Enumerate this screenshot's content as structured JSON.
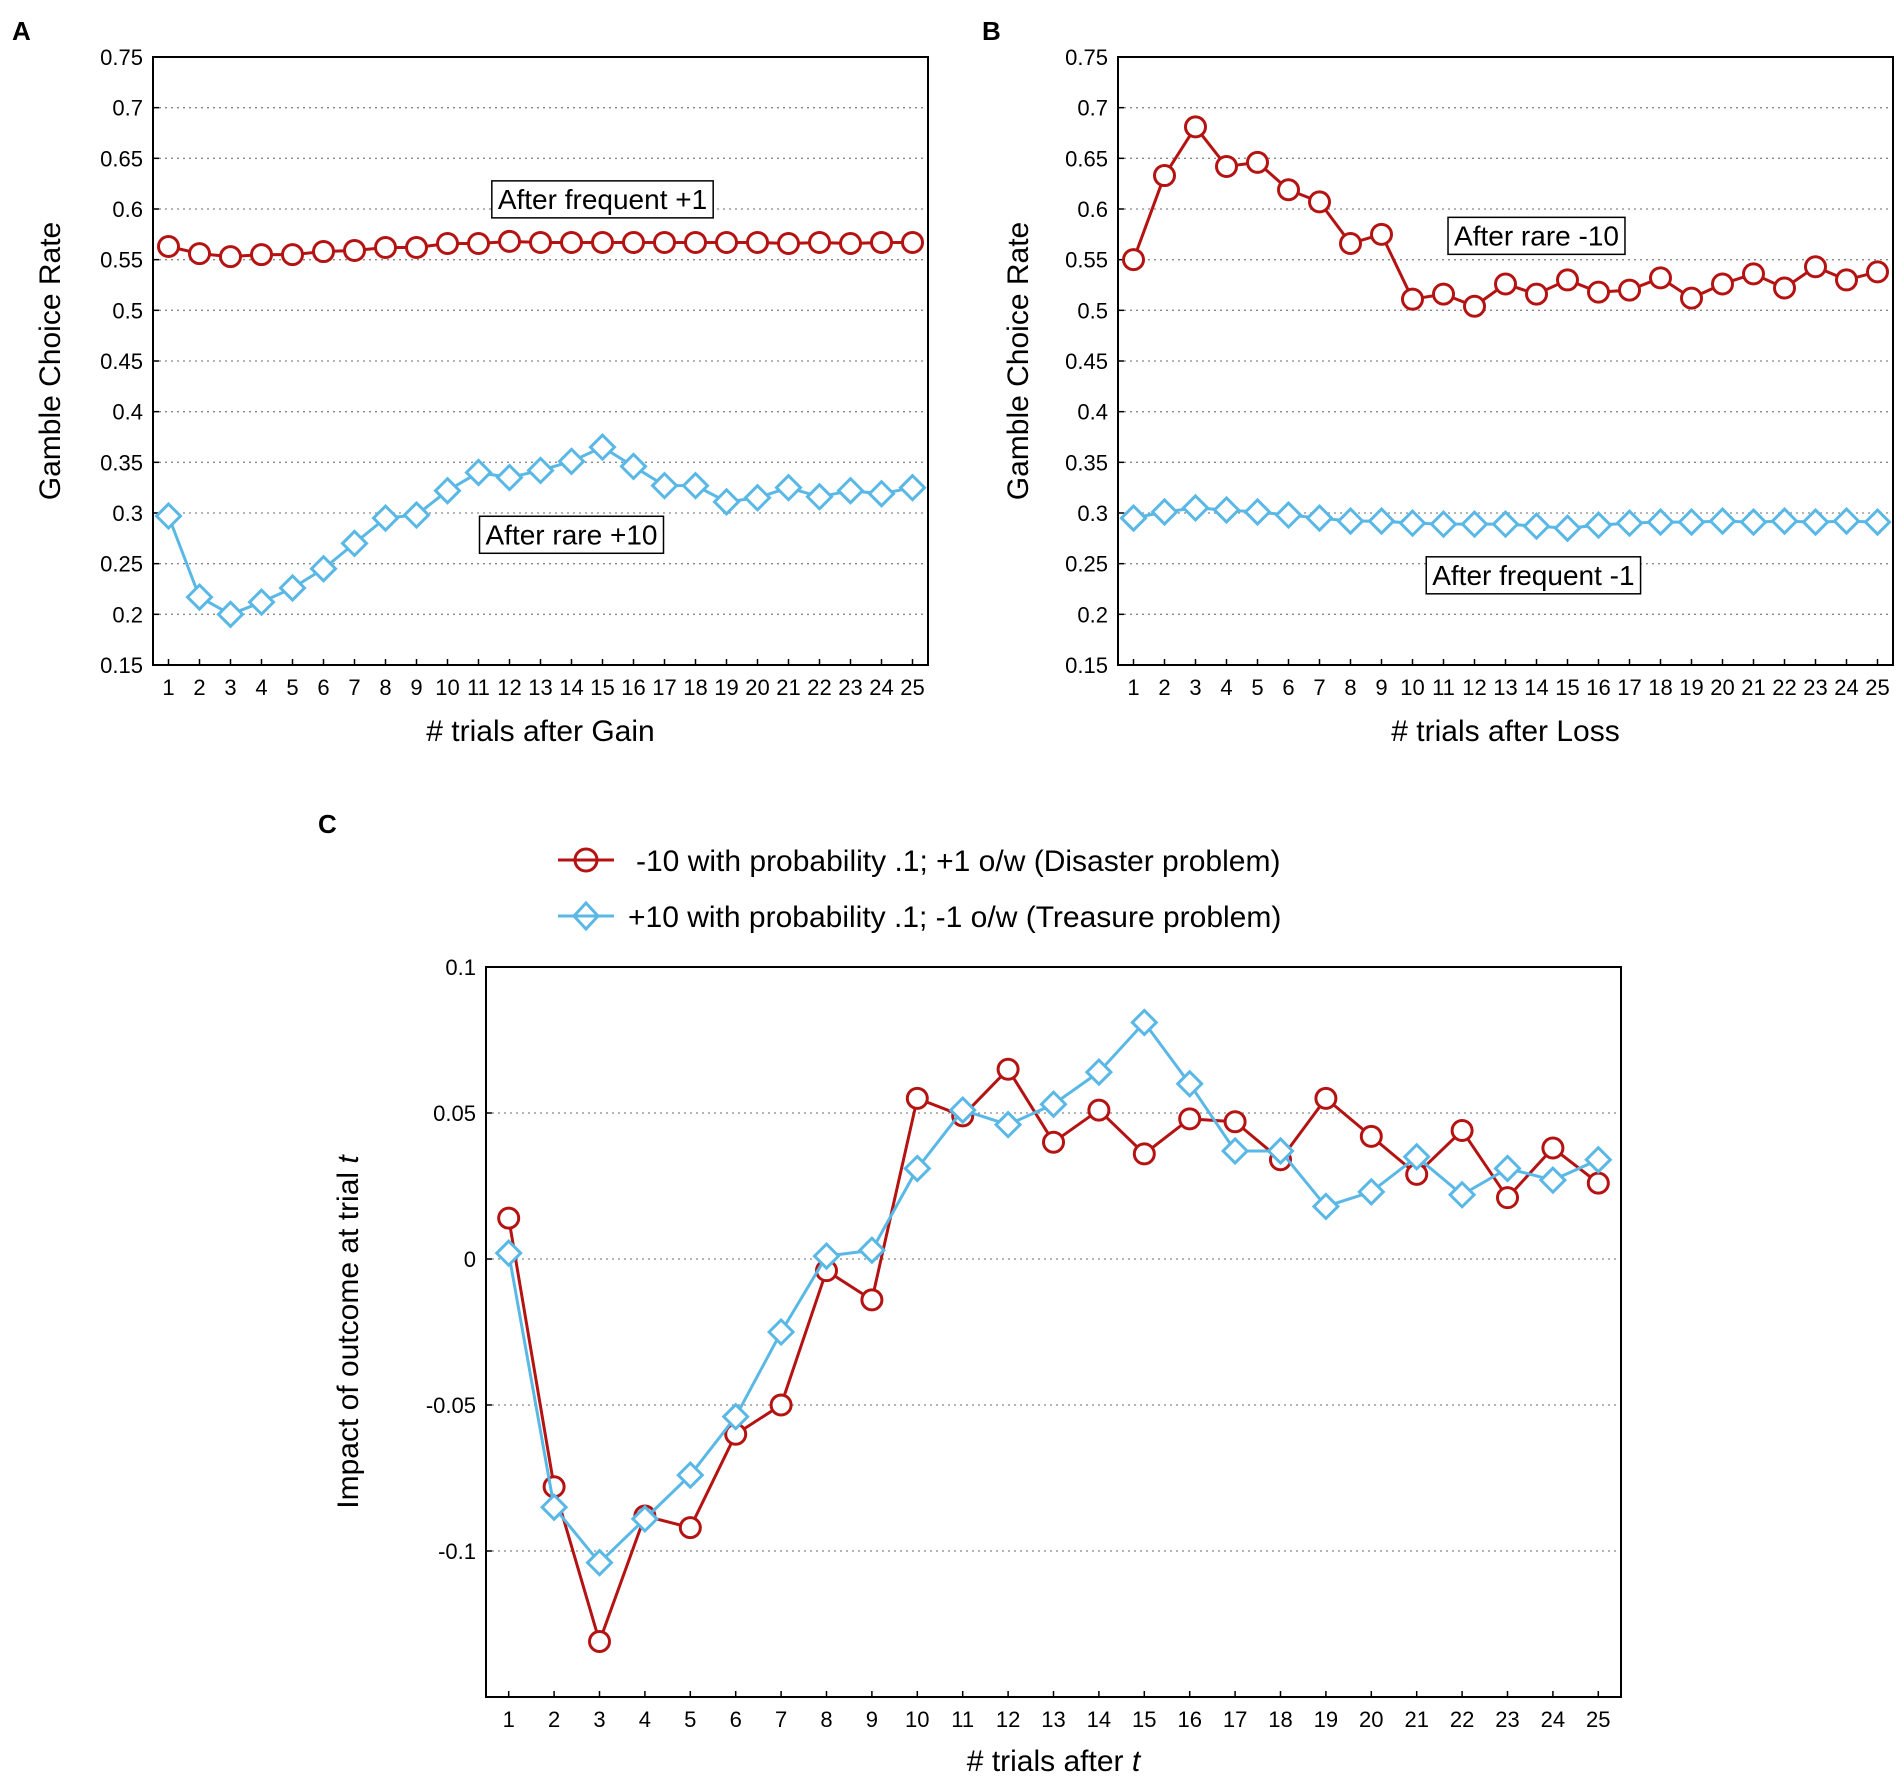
{
  "colors": {
    "red": "#b51212",
    "blue": "#5ab8e6"
  },
  "chart_data": [
    {
      "panel": "A",
      "type": "line",
      "xlabel": "# trials after Gain",
      "ylabel": "Gamble Choice Rate",
      "ylim": [
        0.15,
        0.75
      ],
      "yticks": [
        "0.15",
        "0.2",
        "0.25",
        "0.3",
        "0.35",
        "0.4",
        "0.45",
        "0.5",
        "0.55",
        "0.6",
        "0.65",
        "0.7",
        "0.75"
      ],
      "x": [
        1,
        2,
        3,
        4,
        5,
        6,
        7,
        8,
        9,
        10,
        11,
        12,
        13,
        14,
        15,
        16,
        17,
        18,
        19,
        20,
        21,
        22,
        23,
        24,
        25
      ],
      "grid": true,
      "series": [
        {
          "name": "After frequent +1",
          "color": "red",
          "marker": "circle",
          "values": [
            0.563,
            0.556,
            0.553,
            0.555,
            0.555,
            0.558,
            0.559,
            0.562,
            0.562,
            0.566,
            0.566,
            0.568,
            0.567,
            0.567,
            0.567,
            0.567,
            0.567,
            0.567,
            0.567,
            0.567,
            0.566,
            0.567,
            0.566,
            0.567,
            0.567
          ]
        },
        {
          "name": "After rare +10",
          "color": "blue",
          "marker": "diamond",
          "values": [
            0.297,
            0.217,
            0.2,
            0.212,
            0.226,
            0.245,
            0.27,
            0.295,
            0.298,
            0.322,
            0.34,
            0.335,
            0.342,
            0.351,
            0.365,
            0.346,
            0.327,
            0.327,
            0.311,
            0.315,
            0.325,
            0.316,
            0.322,
            0.319,
            0.325
          ]
        }
      ],
      "annotations": [
        {
          "text": "After frequent +1",
          "anchor_x": 15,
          "anchor_y": 0.61
        },
        {
          "text": "After rare +10",
          "anchor_x": 14,
          "anchor_y": 0.279
        }
      ]
    },
    {
      "panel": "B",
      "type": "line",
      "xlabel": "# trials after Loss",
      "ylabel": "Gamble Choice Rate",
      "ylim": [
        0.15,
        0.75
      ],
      "yticks": [
        "0.15",
        "0.2",
        "0.25",
        "0.3",
        "0.35",
        "0.4",
        "0.45",
        "0.5",
        "0.55",
        "0.6",
        "0.65",
        "0.7",
        "0.75"
      ],
      "x": [
        1,
        2,
        3,
        4,
        5,
        6,
        7,
        8,
        9,
        10,
        11,
        12,
        13,
        14,
        15,
        16,
        17,
        18,
        19,
        20,
        21,
        22,
        23,
        24,
        25
      ],
      "grid": true,
      "series": [
        {
          "name": "After rare -10",
          "color": "red",
          "marker": "circle",
          "values": [
            0.55,
            0.633,
            0.681,
            0.642,
            0.646,
            0.619,
            0.607,
            0.566,
            0.575,
            0.511,
            0.516,
            0.504,
            0.526,
            0.516,
            0.53,
            0.518,
            0.52,
            0.532,
            0.512,
            0.526,
            0.536,
            0.522,
            0.543,
            0.53,
            0.538
          ]
        },
        {
          "name": "After frequent -1",
          "color": "blue",
          "marker": "diamond",
          "values": [
            0.295,
            0.301,
            0.305,
            0.303,
            0.301,
            0.298,
            0.295,
            0.292,
            0.292,
            0.29,
            0.289,
            0.289,
            0.289,
            0.287,
            0.285,
            0.288,
            0.29,
            0.291,
            0.291,
            0.292,
            0.291,
            0.292,
            0.291,
            0.292,
            0.291
          ]
        }
      ],
      "annotations": [
        {
          "text": "After rare -10",
          "anchor_x": 14,
          "anchor_y": 0.574
        },
        {
          "text": "After frequent -1",
          "anchor_x": 13.9,
          "anchor_y": 0.239
        }
      ]
    },
    {
      "panel": "C",
      "type": "line",
      "xlabel": "# trials after",
      "xlabel_italic": "t",
      "ylabel": "Impact of outcome at trial",
      "ylabel_italic": "t",
      "ylim": [
        -0.15,
        0.1
      ],
      "yticks": [
        "-0.1",
        "-0.05",
        "0",
        "0.05",
        "0.1"
      ],
      "ytick_values": [
        -0.1,
        -0.05,
        0,
        0.05,
        0.1
      ],
      "x": [
        1,
        2,
        3,
        4,
        5,
        6,
        7,
        8,
        9,
        10,
        11,
        12,
        13,
        14,
        15,
        16,
        17,
        18,
        19,
        20,
        21,
        22,
        23,
        24,
        25
      ],
      "grid": true,
      "series": [
        {
          "name": "-10 with probability .1; +1 o/w (Disaster problem)",
          "color": "red",
          "marker": "circle",
          "values": [
            0.014,
            -0.078,
            -0.131,
            -0.088,
            -0.092,
            -0.06,
            -0.05,
            -0.004,
            -0.014,
            0.055,
            0.049,
            0.065,
            0.04,
            0.051,
            0.036,
            0.048,
            0.047,
            0.034,
            0.055,
            0.042,
            0.029,
            0.044,
            0.021,
            0.038,
            0.026
          ]
        },
        {
          "name": "+10 with probability .1; -1 o/w (Treasure problem)",
          "color": "blue",
          "marker": "diamond",
          "values": [
            0.002,
            -0.085,
            -0.104,
            -0.089,
            -0.074,
            -0.054,
            -0.025,
            0.001,
            0.003,
            0.031,
            0.051,
            0.046,
            0.053,
            0.064,
            0.081,
            0.06,
            0.037,
            0.037,
            0.018,
            0.023,
            0.035,
            0.022,
            0.031,
            0.027,
            0.034
          ]
        }
      ]
    }
  ]
}
